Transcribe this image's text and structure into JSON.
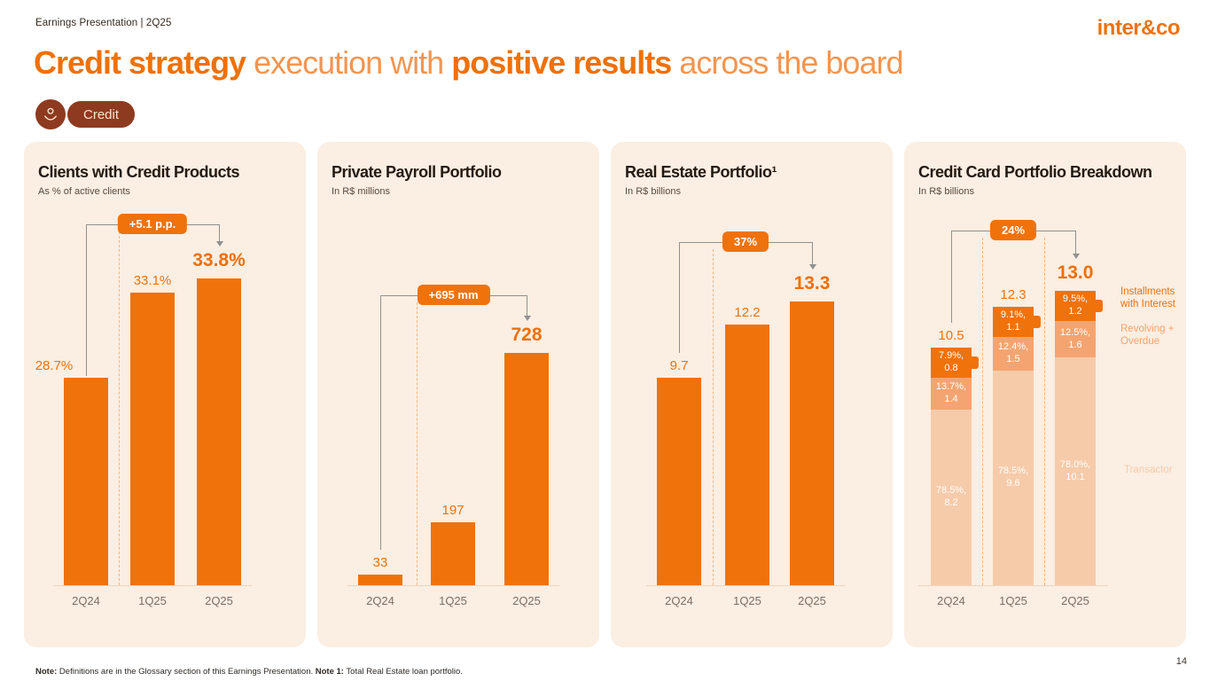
{
  "colors": {
    "orange": "#F0720B",
    "panel_bg": "#FBEEE2",
    "badge_bg": "#8E3A20",
    "badge_text": "#F9E4CE",
    "bracket_gray": "#909090",
    "segment_installments": "#F0720B",
    "segment_revolving": "#F4A470",
    "segment_transactor": "#F6CBAA"
  },
  "header": {
    "breadcrumb": "Earnings Presentation | 2Q25",
    "logo": "inter&co",
    "title_parts": [
      {
        "text": "Credit strategy ",
        "bold": true
      },
      {
        "text": "execution with ",
        "bold": false
      },
      {
        "text": "positive results",
        "bold": true
      },
      {
        "text": " across the board",
        "bold": false
      }
    ],
    "badge_label": "Credit"
  },
  "chart_data": [
    {
      "type": "bar",
      "title": "Clients with Credit Products",
      "subtitle": "As % of active clients",
      "categories": [
        "2Q24",
        "1Q25",
        "2Q25"
      ],
      "values": [
        28.7,
        33.1,
        33.8
      ],
      "labels": [
        "28.7%",
        "33.1%",
        "33.8%"
      ],
      "annotation": "+5.1 p.p.",
      "ylim": [
        18,
        34
      ],
      "grid": false,
      "legend_position": "none"
    },
    {
      "type": "bar",
      "title": "Private Payroll Portfolio",
      "subtitle": "In R$ millions",
      "categories": [
        "2Q24",
        "1Q25",
        "2Q25"
      ],
      "values": [
        33,
        197,
        728
      ],
      "labels": [
        "33",
        "197",
        "728"
      ],
      "annotation": "+695 mm",
      "ylim": [
        0,
        1000
      ],
      "grid": false,
      "legend_position": "none"
    },
    {
      "type": "bar",
      "title": "Real Estate Portfolio¹",
      "subtitle": "In R$ billions",
      "categories": [
        "2Q24",
        "1Q25",
        "2Q25"
      ],
      "values": [
        9.7,
        12.2,
        13.3
      ],
      "labels": [
        "9.7",
        "12.2",
        "13.3"
      ],
      "annotation": "37%",
      "ylim": [
        0,
        13.7
      ],
      "grid": false,
      "legend_position": "none"
    },
    {
      "type": "stacked-bar",
      "title": "Credit Card Portfolio Breakdown",
      "subtitle": "In R$ billions",
      "categories": [
        "2Q24",
        "1Q25",
        "2Q25"
      ],
      "totals": [
        10.5,
        12.3,
        13.0
      ],
      "total_labels": [
        "10.5",
        "12.3",
        "13.0"
      ],
      "annotation": "24%",
      "ylim": [
        0,
        13.3
      ],
      "grid": false,
      "legend_position": "right",
      "series": [
        {
          "name": "Transactor",
          "values": [
            8.2,
            9.6,
            10.1
          ],
          "pcts": [
            "78.5%",
            "78.5%",
            "78.0%"
          ],
          "color_key": "segment_transactor"
        },
        {
          "name": "Revolving + Overdue",
          "values": [
            1.4,
            1.5,
            1.6
          ],
          "pcts": [
            "13.7%",
            "12.4%",
            "12.5%"
          ],
          "color_key": "segment_revolving"
        },
        {
          "name": "Installments with Interest",
          "values": [
            0.8,
            1.1,
            1.2
          ],
          "pcts": [
            "7.9%",
            "9.1%",
            "9.5%"
          ],
          "color_key": "segment_installments"
        }
      ],
      "legend": [
        {
          "label": "Installments with Interest",
          "color_key": "segment_installments"
        },
        {
          "label": "Revolving + Overdue",
          "color_key": "segment_revolving"
        },
        {
          "label": "Transactor",
          "color_key": "segment_transactor"
        }
      ]
    }
  ],
  "footer": {
    "notes": [
      {
        "text": "Note:",
        "bold": true
      },
      {
        "text": " Definitions are in the Glossary section of this Earnings Presentation. ",
        "bold": false
      },
      {
        "text": "Note 1:",
        "bold": true
      },
      {
        "text": " Total Real Estate loan portfolio.",
        "bold": false
      }
    ],
    "page_number": "14"
  }
}
